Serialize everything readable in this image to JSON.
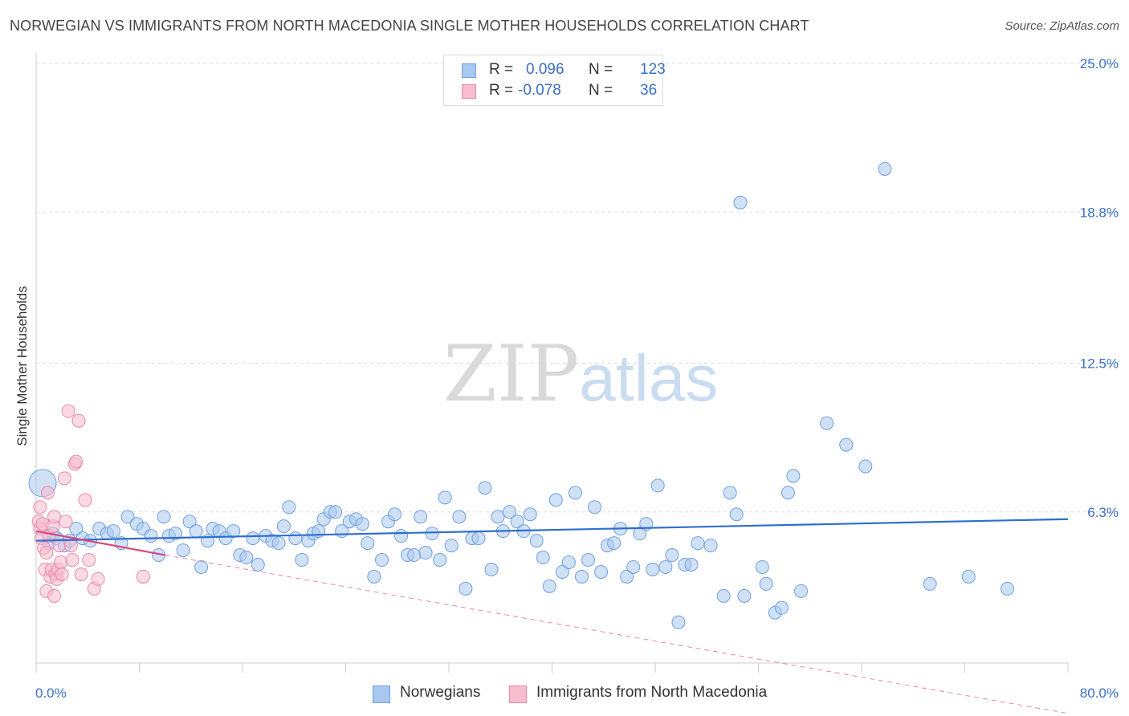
{
  "title": "NORWEGIAN VS IMMIGRANTS FROM NORTH MACEDONIA SINGLE MOTHER HOUSEHOLDS CORRELATION CHART",
  "source": "Source: ZipAtlas.com",
  "watermark": {
    "zip": "ZIP",
    "atlas": "atlas"
  },
  "legend": {
    "rows": [
      {
        "r_label": "R =",
        "r_value": "0.096",
        "n_label": "N =",
        "n_value": "123",
        "color": "#a9c8ef",
        "border": "#6f9fe0"
      },
      {
        "r_label": "R =",
        "r_value": "-0.078",
        "n_label": "N =",
        "n_value": "36",
        "color": "#f7bccd",
        "border": "#e88aa8"
      }
    ]
  },
  "bottom_legend": [
    {
      "label": "Norwegians",
      "color": "#a9c8ef",
      "border": "#6f9fe0"
    },
    {
      "label": "Immigrants from North Macedonia",
      "color": "#f7bccd",
      "border": "#e88aa8"
    }
  ],
  "chart_data": {
    "type": "scatter",
    "title": "NORWEGIAN VS IMMIGRANTS FROM NORTH MACEDONIA SINGLE MOTHER HOUSEHOLDS CORRELATION CHART",
    "xlabel": "",
    "ylabel": "Single Mother Households",
    "xlim": [
      0,
      80
    ],
    "ylim": [
      0,
      25
    ],
    "x_tick_labels": [
      "0.0%",
      "80.0%"
    ],
    "y_ticks": [
      6.3,
      12.5,
      18.8,
      25.0
    ],
    "y_tick_labels": [
      "6.3%",
      "12.5%",
      "18.8%",
      "25.0%"
    ],
    "grid": "horizontal-dashed",
    "series": [
      {
        "name": "Norwegians",
        "color": "#6f9fe0",
        "fill": "#a9c8ef",
        "trend": {
          "x": [
            0,
            80
          ],
          "y": [
            5.1,
            6.0
          ],
          "color": "#2f6fcd"
        },
        "points": [
          [
            0.5,
            7.5
          ],
          [
            1.0,
            5.0
          ],
          [
            1.3,
            5.4
          ],
          [
            1.6,
            5.2
          ],
          [
            2.2,
            4.9
          ],
          [
            2.6,
            5.1
          ],
          [
            3.1,
            5.6
          ],
          [
            3.6,
            5.2
          ],
          [
            4.2,
            5.1
          ],
          [
            4.9,
            5.6
          ],
          [
            5.5,
            5.4
          ],
          [
            6.0,
            5.5
          ],
          [
            6.6,
            5.0
          ],
          [
            7.1,
            6.1
          ],
          [
            7.8,
            5.8
          ],
          [
            8.3,
            5.6
          ],
          [
            8.9,
            5.3
          ],
          [
            9.5,
            4.5
          ],
          [
            9.9,
            6.1
          ],
          [
            10.3,
            5.3
          ],
          [
            10.8,
            5.4
          ],
          [
            11.4,
            4.7
          ],
          [
            11.9,
            5.9
          ],
          [
            12.4,
            5.5
          ],
          [
            12.8,
            4.0
          ],
          [
            13.3,
            5.1
          ],
          [
            13.7,
            5.6
          ],
          [
            14.2,
            5.5
          ],
          [
            14.7,
            5.2
          ],
          [
            15.3,
            5.5
          ],
          [
            15.8,
            4.5
          ],
          [
            16.3,
            4.4
          ],
          [
            16.8,
            5.2
          ],
          [
            17.2,
            4.1
          ],
          [
            17.8,
            5.3
          ],
          [
            18.3,
            5.1
          ],
          [
            18.8,
            5.0
          ],
          [
            19.2,
            5.7
          ],
          [
            19.6,
            6.5
          ],
          [
            20.1,
            5.2
          ],
          [
            20.6,
            4.3
          ],
          [
            21.1,
            5.1
          ],
          [
            21.5,
            5.4
          ],
          [
            21.9,
            5.5
          ],
          [
            22.3,
            6.0
          ],
          [
            22.8,
            6.3
          ],
          [
            23.2,
            6.3
          ],
          [
            23.7,
            5.5
          ],
          [
            24.3,
            5.9
          ],
          [
            24.8,
            6.0
          ],
          [
            25.3,
            5.8
          ],
          [
            25.7,
            5.0
          ],
          [
            26.2,
            3.6
          ],
          [
            26.8,
            4.3
          ],
          [
            27.3,
            5.9
          ],
          [
            27.8,
            6.2
          ],
          [
            28.3,
            5.3
          ],
          [
            28.8,
            4.5
          ],
          [
            29.3,
            4.5
          ],
          [
            29.8,
            6.1
          ],
          [
            30.2,
            4.6
          ],
          [
            30.7,
            5.4
          ],
          [
            31.3,
            4.3
          ],
          [
            31.7,
            6.9
          ],
          [
            32.2,
            4.9
          ],
          [
            32.8,
            6.1
          ],
          [
            33.3,
            3.1
          ],
          [
            33.8,
            5.2
          ],
          [
            34.3,
            5.2
          ],
          [
            34.8,
            7.3
          ],
          [
            35.3,
            3.9
          ],
          [
            35.8,
            6.1
          ],
          [
            36.2,
            5.5
          ],
          [
            36.7,
            6.3
          ],
          [
            37.3,
            5.9
          ],
          [
            37.8,
            5.5
          ],
          [
            38.3,
            6.2
          ],
          [
            38.8,
            5.1
          ],
          [
            39.3,
            4.4
          ],
          [
            39.8,
            3.2
          ],
          [
            40.3,
            6.8
          ],
          [
            40.8,
            3.8
          ],
          [
            41.3,
            4.2
          ],
          [
            41.8,
            7.1
          ],
          [
            42.3,
            3.6
          ],
          [
            42.8,
            4.3
          ],
          [
            43.3,
            6.5
          ],
          [
            43.8,
            3.8
          ],
          [
            44.3,
            4.9
          ],
          [
            44.8,
            5.0
          ],
          [
            45.3,
            5.6
          ],
          [
            45.8,
            3.6
          ],
          [
            46.3,
            4.0
          ],
          [
            46.8,
            5.4
          ],
          [
            47.3,
            5.8
          ],
          [
            47.8,
            3.9
          ],
          [
            48.2,
            7.4
          ],
          [
            48.8,
            4.0
          ],
          [
            49.3,
            4.5
          ],
          [
            49.8,
            1.7
          ],
          [
            50.3,
            4.1
          ],
          [
            50.8,
            4.1
          ],
          [
            51.3,
            5.0
          ],
          [
            52.3,
            4.9
          ],
          [
            53.3,
            2.8
          ],
          [
            53.8,
            7.1
          ],
          [
            54.3,
            6.2
          ],
          [
            54.6,
            19.2
          ],
          [
            54.9,
            2.8
          ],
          [
            56.3,
            4.0
          ],
          [
            56.6,
            3.3
          ],
          [
            57.3,
            2.1
          ],
          [
            57.8,
            2.3
          ],
          [
            58.3,
            7.1
          ],
          [
            58.7,
            7.8
          ],
          [
            59.3,
            3.0
          ],
          [
            61.3,
            10.0
          ],
          [
            62.8,
            9.1
          ],
          [
            64.3,
            8.2
          ],
          [
            65.8,
            20.6
          ],
          [
            69.3,
            3.3
          ],
          [
            72.3,
            3.6
          ],
          [
            75.3,
            3.1
          ]
        ]
      },
      {
        "name": "Immigrants from North Macedonia",
        "color": "#e88aa8",
        "fill": "#f7bccd",
        "trend": {
          "x": [
            0,
            10
          ],
          "y": [
            5.5,
            4.5
          ],
          "color": "#d9477b"
        },
        "trend_extension": {
          "x": [
            10,
            80
          ],
          "y": [
            4.5,
            -2.1
          ]
        },
        "points": [
          [
            0.2,
            5.9
          ],
          [
            0.3,
            6.5
          ],
          [
            0.3,
            5.6
          ],
          [
            0.4,
            5.2
          ],
          [
            0.5,
            5.8
          ],
          [
            0.6,
            4.8
          ],
          [
            0.7,
            3.9
          ],
          [
            0.8,
            4.6
          ],
          [
            0.8,
            3.0
          ],
          [
            0.9,
            7.1
          ],
          [
            1.0,
            5.3
          ],
          [
            1.1,
            3.6
          ],
          [
            1.2,
            3.9
          ],
          [
            1.3,
            5.7
          ],
          [
            1.4,
            6.1
          ],
          [
            1.4,
            2.8
          ],
          [
            1.5,
            3.7
          ],
          [
            1.6,
            3.5
          ],
          [
            1.7,
            3.9
          ],
          [
            1.8,
            4.9
          ],
          [
            1.9,
            4.2
          ],
          [
            2.0,
            3.7
          ],
          [
            2.2,
            7.7
          ],
          [
            2.3,
            5.9
          ],
          [
            2.5,
            10.5
          ],
          [
            2.7,
            4.9
          ],
          [
            2.8,
            4.3
          ],
          [
            3.0,
            8.3
          ],
          [
            3.1,
            8.4
          ],
          [
            3.3,
            10.1
          ],
          [
            3.5,
            3.7
          ],
          [
            3.8,
            6.8
          ],
          [
            4.1,
            4.3
          ],
          [
            4.5,
            3.1
          ],
          [
            4.8,
            3.5
          ],
          [
            8.3,
            3.6
          ]
        ]
      }
    ]
  }
}
